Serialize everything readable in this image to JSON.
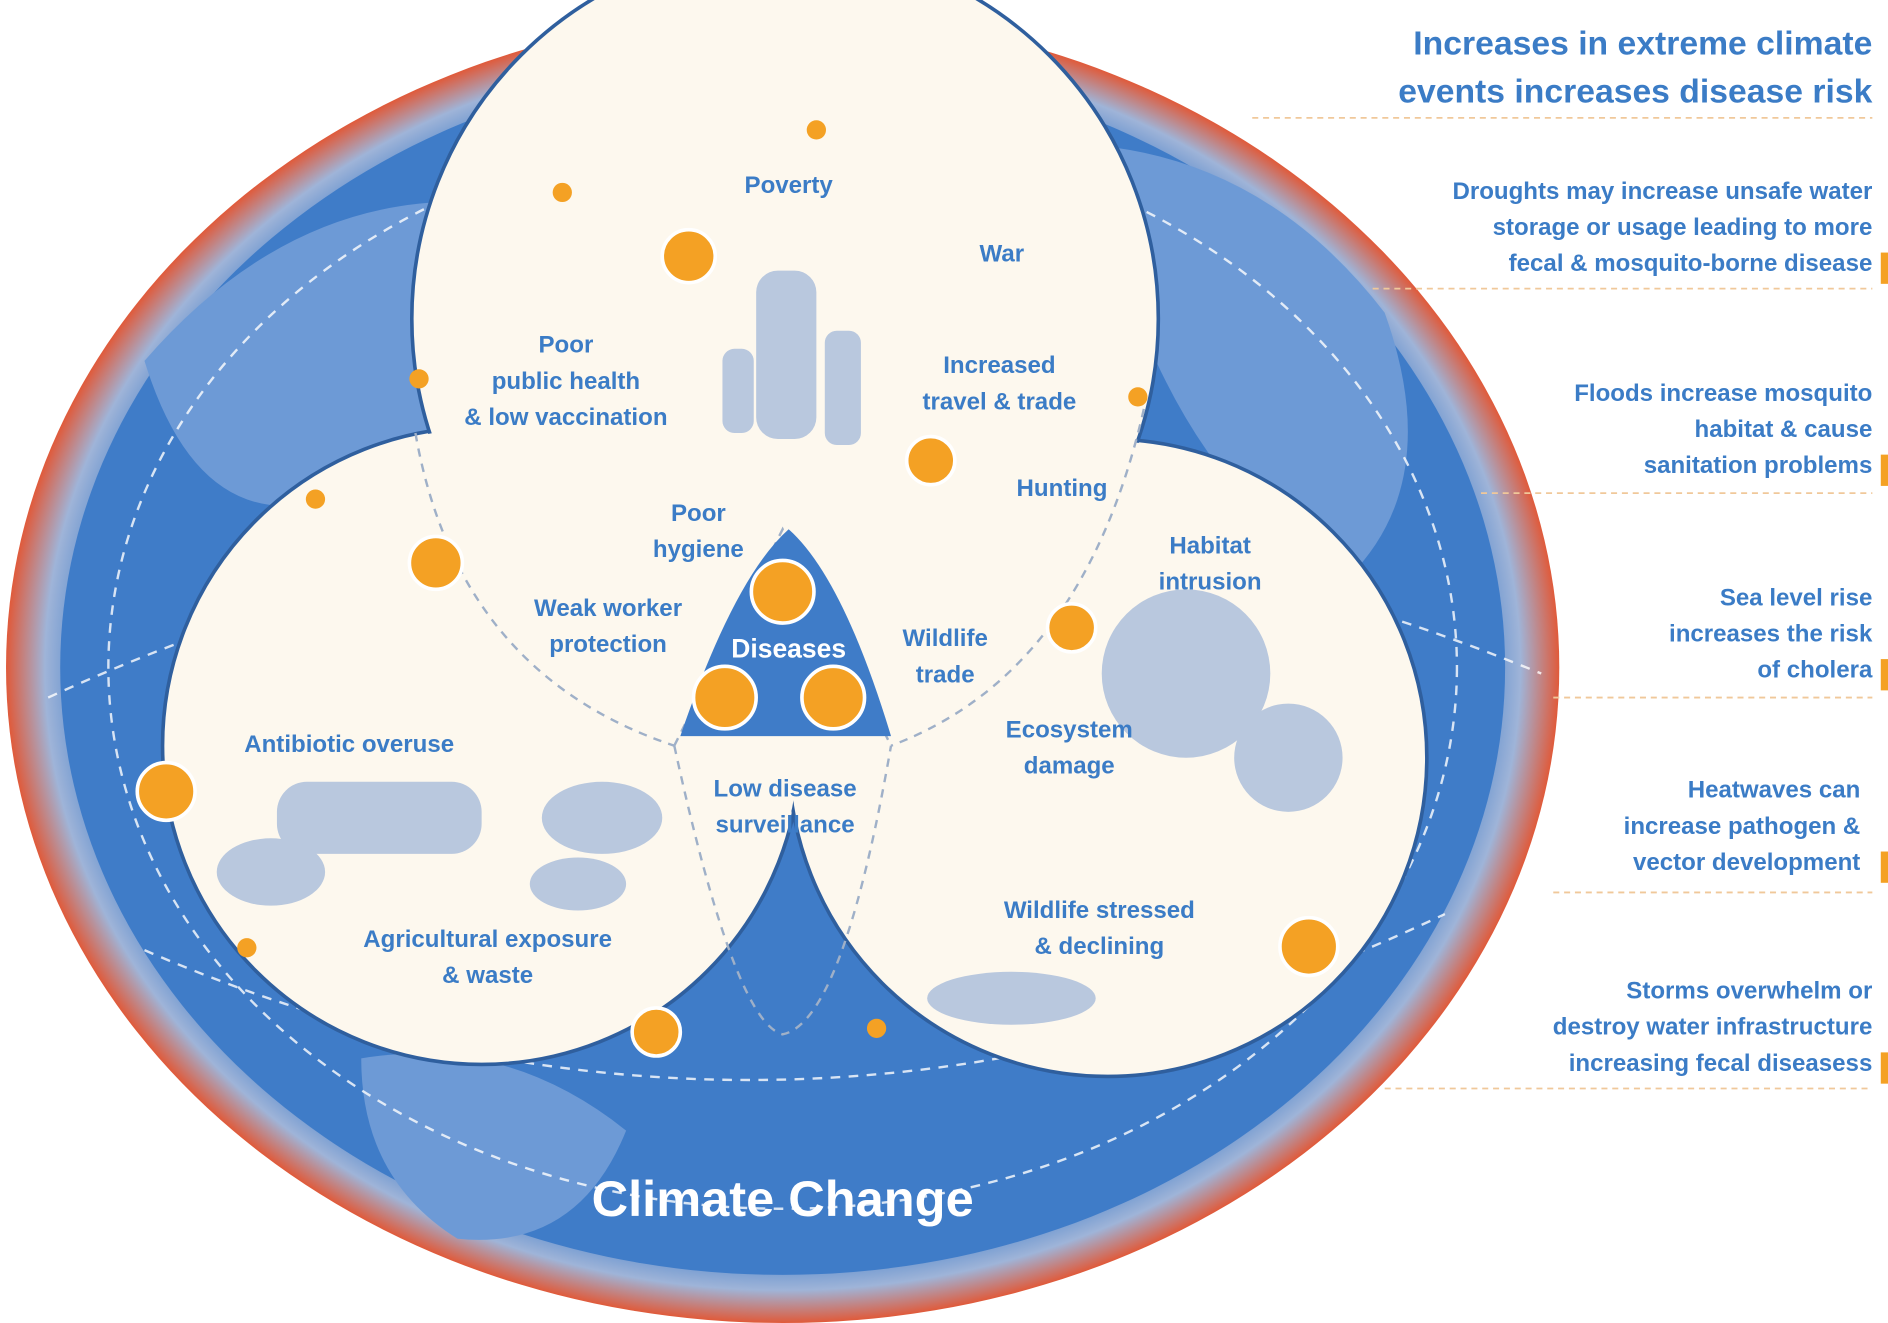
{
  "globe_label": "Climate Change",
  "center_label": "Diseases",
  "factors": [
    {
      "lines": [
        "Poverty"
      ]
    },
    {
      "lines": [
        "War"
      ]
    },
    {
      "lines": [
        "Poor",
        "public health",
        "& low vaccination"
      ]
    },
    {
      "lines": [
        "Increased",
        "travel & trade"
      ]
    },
    {
      "lines": [
        "Poor",
        "hygiene"
      ]
    },
    {
      "lines": [
        "Hunting"
      ]
    },
    {
      "lines": [
        "Habitat",
        "intrusion"
      ]
    },
    {
      "lines": [
        "Weak worker",
        "protection"
      ]
    },
    {
      "lines": [
        "Wildlife",
        "trade"
      ]
    },
    {
      "lines": [
        "Ecosystem",
        "damage"
      ]
    },
    {
      "lines": [
        "Antibiotic overuse"
      ]
    },
    {
      "lines": [
        "Low disease",
        "surveillance"
      ]
    },
    {
      "lines": [
        "Wildlife stressed",
        "& declining"
      ]
    },
    {
      "lines": [
        "Agricultural exposure",
        "& waste"
      ]
    }
  ],
  "annotations": {
    "title": [
      "Increases in extreme climate",
      "events increases disease risk"
    ],
    "items": [
      {
        "lines": [
          "Droughts may increase unsafe water",
          "storage or usage leading to more",
          "fecal & mosquito-borne disease"
        ]
      },
      {
        "lines": [
          "Floods increase mosquito",
          "habitat & cause",
          "sanitation problems"
        ]
      },
      {
        "lines": [
          "Sea level rise",
          "increases the risk",
          "of cholera"
        ]
      },
      {
        "lines": [
          "Heatwaves can",
          "increase pathogen &",
          "vector development"
        ]
      },
      {
        "lines": [
          "Storms overwhelm or",
          "destroy water infrastructure",
          "increasing fecal diseasess"
        ]
      }
    ]
  }
}
